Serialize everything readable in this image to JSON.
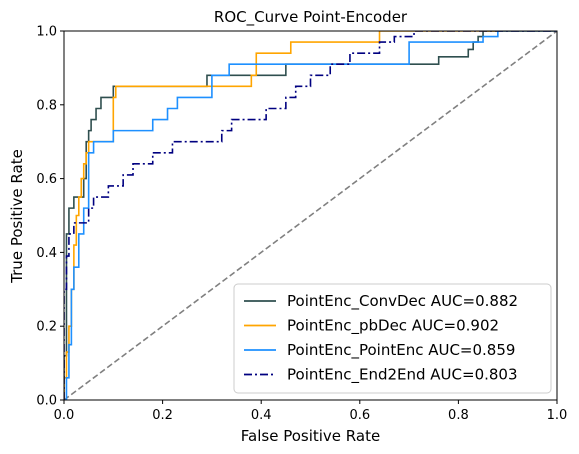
{
  "chart_data": {
    "type": "line",
    "title": "ROC_Curve Point-Encoder",
    "xlabel": "False Positive Rate",
    "ylabel": "True Positive Rate",
    "xlim": [
      0,
      1
    ],
    "ylim": [
      0,
      1
    ],
    "xticks": [
      "0.0",
      "0.2",
      "0.4",
      "0.6",
      "0.8",
      "1.0"
    ],
    "yticks": [
      "0.0",
      "0.2",
      "0.4",
      "0.6",
      "0.8",
      "1.0"
    ],
    "grid": false,
    "legend_position": "lower-right",
    "diagonal": {
      "x": [
        0,
        1
      ],
      "y": [
        0,
        1
      ],
      "color": "#808080",
      "style": "dashed"
    },
    "series": [
      {
        "name": "PointEnc_ConvDec AUC=0.882",
        "color": "#2f4f4f",
        "style": "solid",
        "x": [
          0.0,
          0.0,
          0.005,
          0.005,
          0.01,
          0.01,
          0.02,
          0.02,
          0.04,
          0.04,
          0.045,
          0.045,
          0.05,
          0.05,
          0.055,
          0.055,
          0.065,
          0.065,
          0.075,
          0.075,
          0.1,
          0.1,
          0.29,
          0.29,
          0.45,
          0.45,
          0.76,
          0.76,
          0.82,
          0.82,
          0.83,
          0.83,
          0.84,
          0.84,
          0.85,
          0.85,
          0.86,
          0.86,
          1.0
        ],
        "y": [
          0.0,
          0.12,
          0.12,
          0.45,
          0.45,
          0.52,
          0.52,
          0.55,
          0.55,
          0.6,
          0.6,
          0.7,
          0.7,
          0.73,
          0.73,
          0.76,
          0.76,
          0.79,
          0.79,
          0.82,
          0.82,
          0.85,
          0.85,
          0.88,
          0.88,
          0.91,
          0.91,
          0.93,
          0.93,
          0.95,
          0.95,
          0.97,
          0.97,
          0.985,
          0.985,
          1.0,
          1.0,
          1.0,
          1.0
        ]
      },
      {
        "name": "PointEnc_pbDec AUC=0.902",
        "color": "#ffa500",
        "style": "solid",
        "x": [
          0.0,
          0.0,
          0.005,
          0.005,
          0.01,
          0.01,
          0.015,
          0.015,
          0.02,
          0.02,
          0.025,
          0.025,
          0.03,
          0.03,
          0.035,
          0.035,
          0.04,
          0.04,
          0.045,
          0.045,
          0.05,
          0.05,
          0.07,
          0.07,
          0.1,
          0.1,
          0.105,
          0.105,
          0.11,
          0.11,
          0.29,
          0.29,
          0.38,
          0.38,
          0.39,
          0.39,
          0.46,
          0.46,
          0.64,
          0.64,
          1.0
        ],
        "y": [
          0.0,
          0.06,
          0.06,
          0.13,
          0.13,
          0.2,
          0.2,
          0.3,
          0.3,
          0.42,
          0.42,
          0.5,
          0.5,
          0.55,
          0.55,
          0.6,
          0.6,
          0.64,
          0.64,
          0.67,
          0.67,
          0.7,
          0.7,
          0.7,
          0.7,
          0.82,
          0.82,
          0.85,
          0.85,
          0.85,
          0.85,
          0.85,
          0.85,
          0.88,
          0.88,
          0.94,
          0.94,
          0.97,
          0.97,
          1.0,
          1.0
        ]
      },
      {
        "name": "PointEnc_PointEnc AUC=0.859",
        "color": "#1e90ff",
        "style": "solid",
        "x": [
          0.0,
          0.0,
          0.005,
          0.005,
          0.01,
          0.01,
          0.015,
          0.015,
          0.02,
          0.02,
          0.03,
          0.03,
          0.04,
          0.04,
          0.05,
          0.05,
          0.06,
          0.06,
          0.085,
          0.085,
          0.1,
          0.1,
          0.18,
          0.18,
          0.21,
          0.21,
          0.23,
          0.23,
          0.28,
          0.28,
          0.3,
          0.3,
          0.335,
          0.335,
          0.7,
          0.7,
          0.78,
          0.78,
          0.85,
          0.85,
          0.88,
          0.88,
          1.0
        ],
        "y": [
          0.0,
          0.0,
          0.0,
          0.06,
          0.06,
          0.15,
          0.15,
          0.3,
          0.3,
          0.36,
          0.36,
          0.45,
          0.45,
          0.52,
          0.52,
          0.67,
          0.67,
          0.7,
          0.7,
          0.7,
          0.7,
          0.73,
          0.73,
          0.76,
          0.76,
          0.79,
          0.79,
          0.82,
          0.82,
          0.82,
          0.82,
          0.88,
          0.88,
          0.91,
          0.91,
          0.97,
          0.97,
          0.97,
          0.97,
          0.985,
          0.985,
          1.0,
          1.0
        ]
      },
      {
        "name": "PointEnc_End2End AUC=0.803",
        "color": "#000080",
        "style": "dashdot",
        "x": [
          0.0,
          0.0,
          0.005,
          0.005,
          0.01,
          0.01,
          0.02,
          0.02,
          0.04,
          0.04,
          0.05,
          0.05,
          0.06,
          0.06,
          0.09,
          0.09,
          0.12,
          0.12,
          0.14,
          0.14,
          0.18,
          0.18,
          0.19,
          0.19,
          0.22,
          0.22,
          0.27,
          0.27,
          0.29,
          0.29,
          0.32,
          0.32,
          0.34,
          0.34,
          0.38,
          0.38,
          0.41,
          0.41,
          0.45,
          0.45,
          0.47,
          0.47,
          0.5,
          0.5,
          0.54,
          0.54,
          0.58,
          0.58,
          0.62,
          0.62,
          0.64,
          0.64,
          0.67,
          0.67,
          0.69,
          0.69,
          0.71,
          0.71,
          1.0
        ],
        "y": [
          0.0,
          0.3,
          0.3,
          0.39,
          0.39,
          0.45,
          0.45,
          0.48,
          0.48,
          0.48,
          0.48,
          0.52,
          0.52,
          0.55,
          0.55,
          0.58,
          0.58,
          0.61,
          0.61,
          0.64,
          0.64,
          0.67,
          0.67,
          0.67,
          0.67,
          0.7,
          0.7,
          0.7,
          0.7,
          0.7,
          0.7,
          0.73,
          0.73,
          0.76,
          0.76,
          0.76,
          0.76,
          0.79,
          0.79,
          0.82,
          0.82,
          0.85,
          0.85,
          0.88,
          0.88,
          0.91,
          0.91,
          0.94,
          0.94,
          0.94,
          0.94,
          0.97,
          0.97,
          0.985,
          0.985,
          0.985,
          0.985,
          1.0,
          1.0
        ]
      }
    ]
  }
}
